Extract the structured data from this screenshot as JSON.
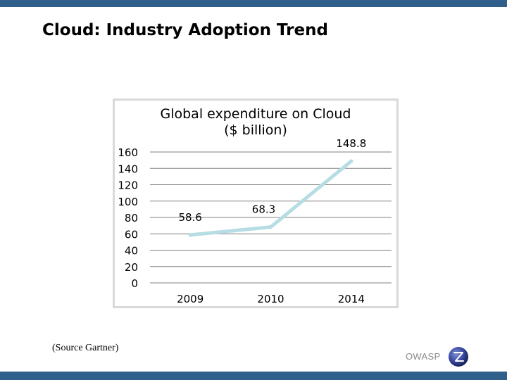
{
  "slide": {
    "title": "Cloud: Industry Adoption Trend",
    "source": "(Source Gartner)",
    "brand": "OWASP"
  },
  "colors": {
    "top_bar": "#2f5f8a",
    "line": "#b7dde4",
    "grid": "#808080",
    "frame": "#d9d9d9"
  },
  "chart_data": {
    "type": "line",
    "title": "Global expenditure on Cloud ($ billion)",
    "title_lines": [
      "Global expenditure on Cloud",
      "($ billion)"
    ],
    "categories": [
      "2009",
      "2010",
      "2014"
    ],
    "series": [
      {
        "name": "Global expenditure on Cloud",
        "values": [
          58.6,
          68.3,
          148.8
        ]
      }
    ],
    "data_labels": [
      "58.6",
      "68.3",
      "148.8"
    ],
    "y_ticks": [
      "160",
      "140",
      "120",
      "100",
      "80",
      "60",
      "40",
      "20",
      "0"
    ],
    "ylim": [
      0,
      160
    ],
    "grid": true,
    "legend": "none",
    "xlabel": "",
    "ylabel": ""
  }
}
